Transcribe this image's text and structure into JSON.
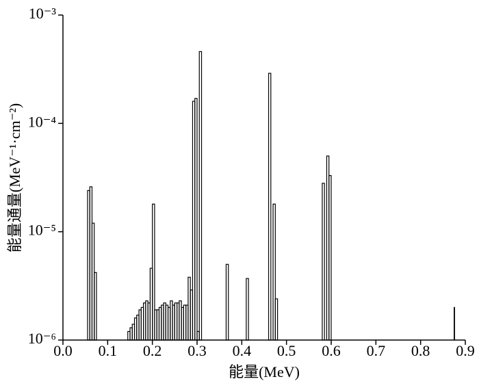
{
  "chart_data": {
    "type": "histogram",
    "xlabel": "能量(MeV)",
    "ylabel": "能量通量(MeV⁻¹·cm⁻²)",
    "ylog": true,
    "color": "#000000",
    "xlim": [
      0,
      0.9
    ],
    "xticks": [
      {
        "value": 0,
        "label": "0.0"
      },
      0.1,
      0.2,
      0.3,
      0.4,
      0.5,
      0.6,
      0.7,
      0.8,
      0.9
    ],
    "ylim": [
      1e-06,
      0.001
    ],
    "yticks": [
      {
        "value": 1e-06,
        "label": "10⁻⁶"
      },
      {
        "value": 1e-05,
        "label": "10⁻⁵"
      },
      {
        "value": 0.0001,
        "label": "10⁻⁴"
      },
      {
        "value": 0.001,
        "label": "10⁻³"
      }
    ],
    "bins": [
      0.055,
      0.06,
      0.065,
      0.07,
      0.075,
      0.145,
      0.15,
      0.155,
      0.16,
      0.165,
      0.17,
      0.175,
      0.18,
      0.185,
      0.19,
      0.195,
      0.2,
      0.205,
      0.21,
      0.215,
      0.22,
      0.225,
      0.23,
      0.235,
      0.24,
      0.245,
      0.25,
      0.255,
      0.26,
      0.265,
      0.27,
      0.275,
      0.28,
      0.285,
      0.29,
      0.295,
      0.3,
      0.305,
      0.31,
      0.365,
      0.37,
      0.41,
      0.415,
      0.46,
      0.465,
      0.47,
      0.475,
      0.48,
      0.58,
      0.585,
      0.59,
      0.595,
      0.6,
      0.875,
      0.876
    ],
    "counts": [
      2.4e-05,
      2.6e-05,
      1.2e-05,
      4.2e-06,
      null,
      1.2e-06,
      1.3e-06,
      1.4e-06,
      1.6e-06,
      1.7e-06,
      1.9e-06,
      2e-06,
      2.2e-06,
      2.3e-06,
      2.2e-06,
      4.6e-06,
      1.8e-05,
      1.9e-06,
      1.9e-06,
      2e-06,
      2.1e-06,
      2.2e-06,
      2.1e-06,
      2e-06,
      2.3e-06,
      2.1e-06,
      2.2e-06,
      2.2e-06,
      2.3e-06,
      2e-06,
      2.1e-06,
      2.1e-06,
      3.8e-06,
      2.9e-06,
      0.00016,
      0.00017,
      1.2e-06,
      0.00046,
      null,
      5e-06,
      null,
      3.7e-06,
      null,
      0.00029,
      null,
      1.8e-05,
      2.4e-06,
      null,
      2.8e-05,
      null,
      5e-05,
      3.3e-05,
      null,
      2e-06
    ]
  }
}
